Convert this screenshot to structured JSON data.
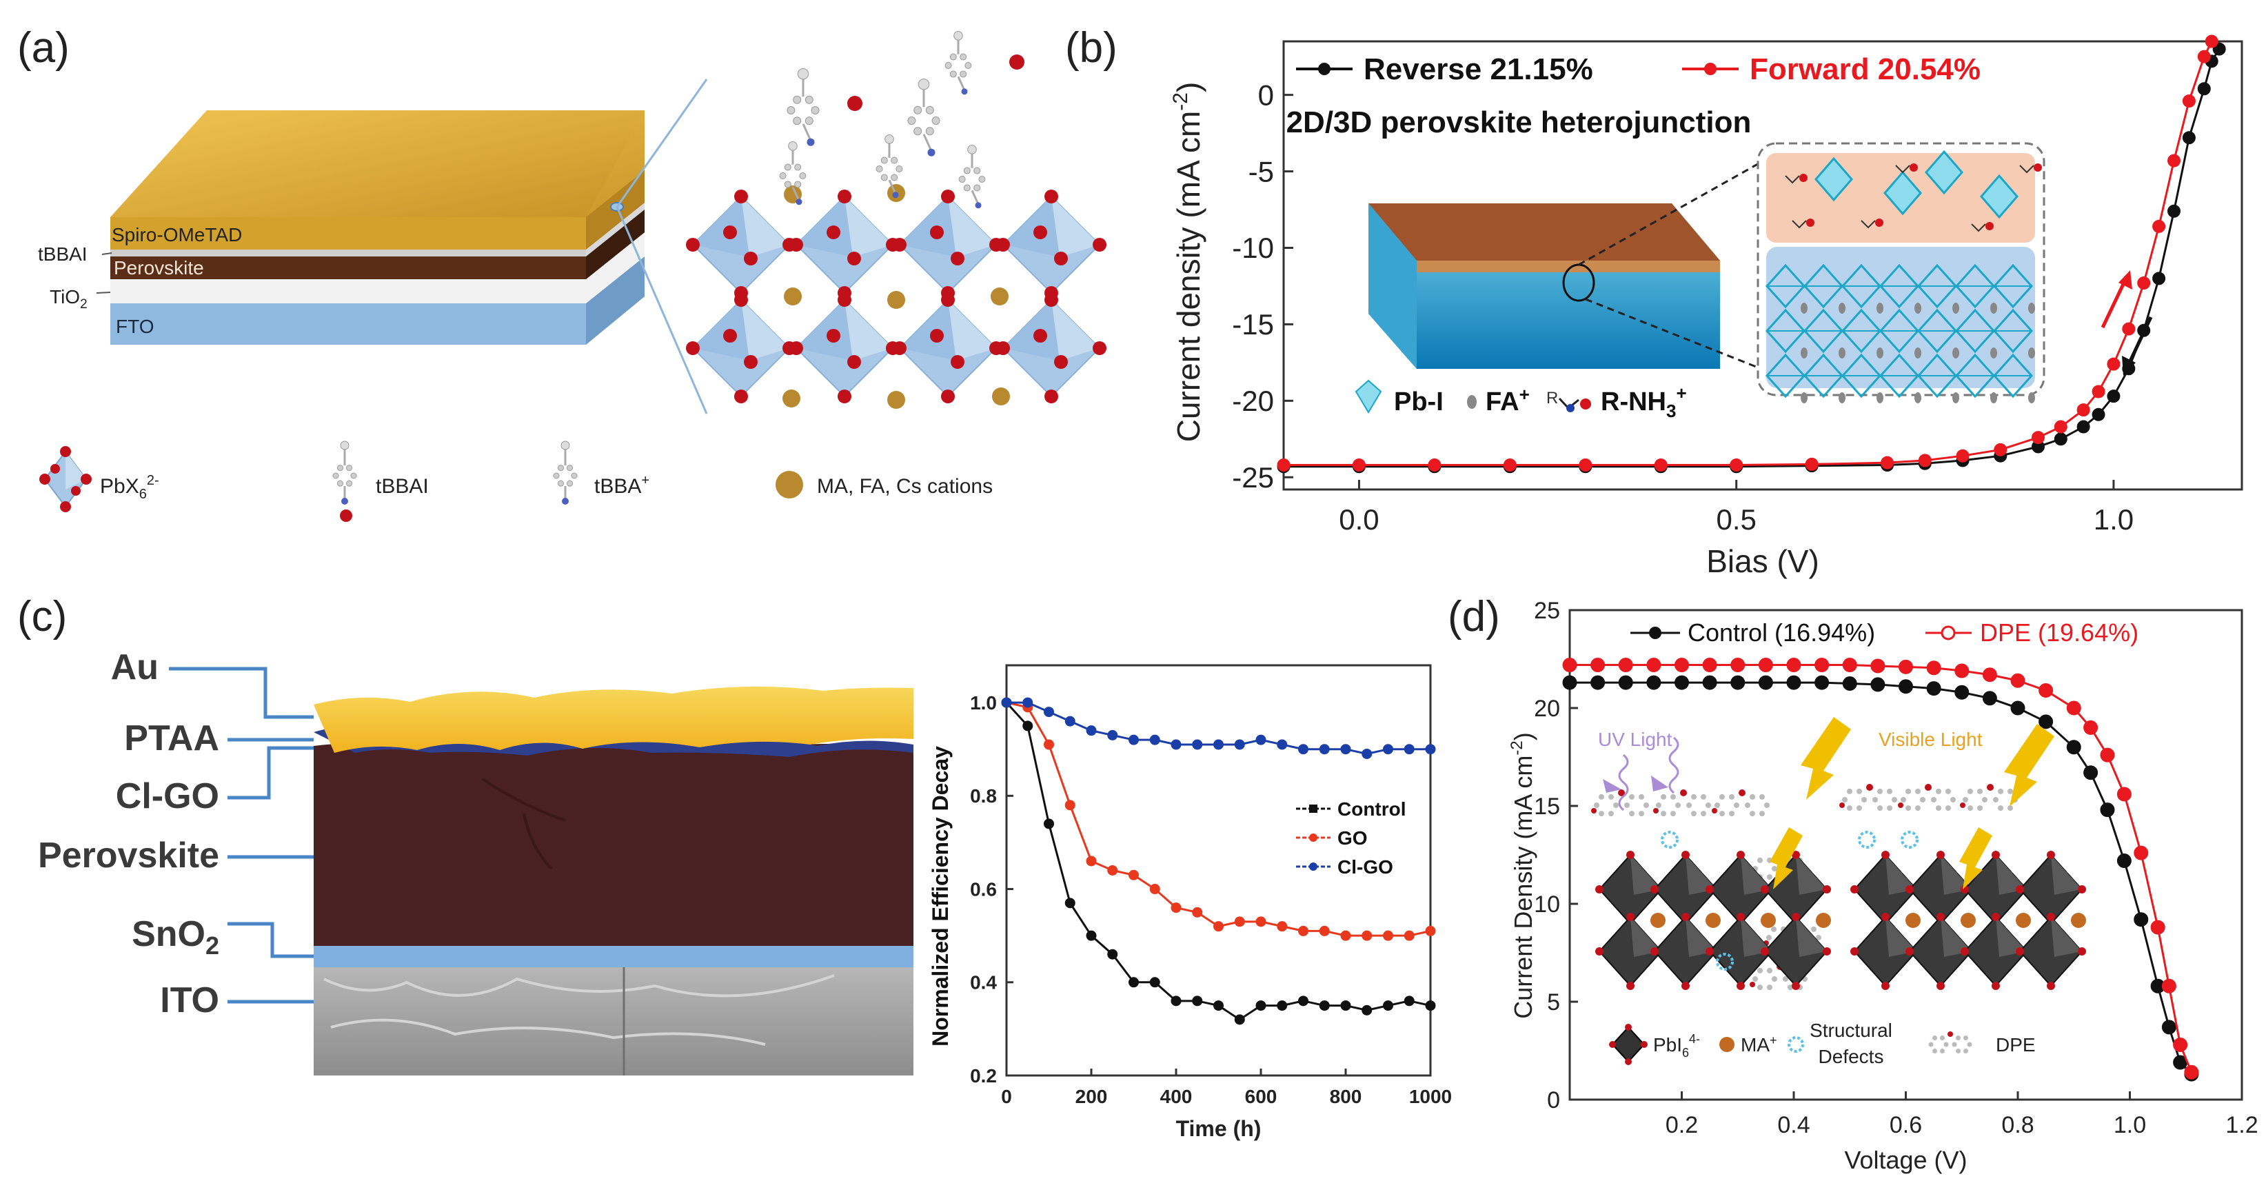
{
  "panel_a": {
    "label": "(a)",
    "layers": [
      "Spiro-OMeTAD",
      "tBBAI",
      "Perovskite",
      "TiO2",
      "FTO"
    ],
    "legend": [
      {
        "symbol": "PbX6 2-",
        "text": "PbX",
        "sub": "6",
        "sup": "2-"
      },
      {
        "symbol": "tBBAI",
        "text": "tBBAI"
      },
      {
        "symbol": "tBBA+",
        "text": "tBBA",
        "sup": "+"
      },
      {
        "symbol": "cations",
        "text": "MA, FA, Cs cations"
      }
    ],
    "colors": {
      "spiro": "#d9aa32",
      "perovskite": "#5a2e16",
      "fto": "#8fb9df",
      "cation": "#b8892e",
      "octahedron": "#a9c8e8",
      "anion": "#c0111b"
    }
  },
  "panel_b": {
    "label": "(b)",
    "inset_title": "2D/3D perovskite heterojunction",
    "inset_legend": [
      "Pb-I",
      "FA+",
      "R-NH3+"
    ],
    "inset_legend_parts": {
      "pbi": "Pb-I",
      "fa": "FA",
      "fa_sup": "+",
      "r": "R",
      "rnh": "R-NH",
      "rnh_sub": "3",
      "rnh_sup": "+"
    }
  },
  "panel_c": {
    "label": "(c)",
    "cross_section_labels": [
      "Au",
      "PTAA",
      "Cl-GO",
      "Perovskite",
      "SnO2",
      "ITO"
    ],
    "sno2": {
      "text": "SnO",
      "sub": "2"
    }
  },
  "panel_d": {
    "label": "(d)",
    "inset_labels": {
      "uv": "UV Light",
      "visible": "Visible Light"
    },
    "inset_legend": {
      "pbi": "PbI",
      "pbi_sub": "6",
      "pbi_sup": "4-",
      "ma": "MA",
      "ma_sup": "+",
      "defects_1": "Structural",
      "defects_2": "Defects",
      "dpe": "DPE"
    }
  },
  "chart_data": [
    {
      "id": "b",
      "type": "line",
      "title": "",
      "xlabel": "Bias (V)",
      "ylabel": "Current density (mA cm-2)",
      "ylabel_parts": {
        "main": "Current density (mA cm",
        "sup": "-2",
        "end": ")"
      },
      "xlim": [
        -0.1,
        1.17
      ],
      "ylim": [
        -25.8,
        3.5
      ],
      "xticks": [
        0.0,
        0.5,
        1.0
      ],
      "xtick_labels": [
        "0.0",
        "0.5",
        "1.0"
      ],
      "yticks": [
        0,
        -5,
        -10,
        -15,
        -20,
        -25
      ],
      "ytick_labels": [
        "0",
        "-5",
        "-10",
        "-15",
        "-20",
        "-25"
      ],
      "legend_position": "top-left",
      "series": [
        {
          "name": "Reverse 21.15%",
          "color": "#111111",
          "x": [
            -0.1,
            0.0,
            0.1,
            0.2,
            0.3,
            0.4,
            0.5,
            0.6,
            0.7,
            0.75,
            0.8,
            0.85,
            0.9,
            0.93,
            0.96,
            0.98,
            1.0,
            1.02,
            1.04,
            1.06,
            1.08,
            1.1,
            1.12,
            1.13,
            1.14
          ],
          "y": [
            -24.3,
            -24.3,
            -24.3,
            -24.3,
            -24.3,
            -24.3,
            -24.3,
            -24.25,
            -24.2,
            -24.1,
            -23.9,
            -23.6,
            -23.0,
            -22.5,
            -21.7,
            -20.9,
            -19.7,
            -17.9,
            -15.4,
            -12.0,
            -7.6,
            -2.8,
            0.4,
            2.2,
            3.0
          ]
        },
        {
          "name": "Forward 20.54%",
          "color": "#e8191f",
          "x": [
            -0.1,
            0.0,
            0.1,
            0.2,
            0.3,
            0.4,
            0.5,
            0.6,
            0.7,
            0.75,
            0.8,
            0.85,
            0.9,
            0.93,
            0.96,
            0.98,
            1.0,
            1.02,
            1.04,
            1.06,
            1.08,
            1.1,
            1.12,
            1.13
          ],
          "y": [
            -24.2,
            -24.2,
            -24.2,
            -24.2,
            -24.2,
            -24.2,
            -24.2,
            -24.15,
            -24.05,
            -23.9,
            -23.6,
            -23.2,
            -22.4,
            -21.7,
            -20.6,
            -19.4,
            -17.6,
            -15.3,
            -12.3,
            -8.6,
            -4.3,
            -0.4,
            2.5,
            3.5
          ]
        }
      ]
    },
    {
      "id": "c",
      "type": "line",
      "title": "",
      "xlabel": "Time (h)",
      "ylabel": "Normalized Efficiency Decay",
      "xlim": [
        0,
        1000
      ],
      "ylim": [
        0.2,
        1.08
      ],
      "xticks": [
        0,
        200,
        400,
        600,
        800,
        1000
      ],
      "xtick_labels": [
        "0",
        "200",
        "400",
        "600",
        "800",
        "1000"
      ],
      "yticks": [
        0.2,
        0.4,
        0.6,
        0.8,
        1.0
      ],
      "ytick_labels": [
        "0.2",
        "0.4",
        "0.6",
        "0.8",
        "1.0"
      ],
      "legend_position": "right",
      "series": [
        {
          "name": "Control",
          "color": "#111111",
          "x": [
            0,
            50,
            100,
            150,
            200,
            250,
            300,
            350,
            400,
            450,
            500,
            550,
            600,
            650,
            700,
            750,
            800,
            850,
            900,
            950,
            1000
          ],
          "y": [
            1.0,
            0.95,
            0.74,
            0.57,
            0.5,
            0.46,
            0.4,
            0.4,
            0.36,
            0.36,
            0.35,
            0.32,
            0.35,
            0.35,
            0.36,
            0.35,
            0.35,
            0.34,
            0.35,
            0.36,
            0.35
          ]
        },
        {
          "name": "GO",
          "color": "#e8391f",
          "x": [
            0,
            50,
            100,
            150,
            200,
            250,
            300,
            350,
            400,
            450,
            500,
            550,
            600,
            650,
            700,
            750,
            800,
            850,
            900,
            950,
            1000
          ],
          "y": [
            1.0,
            0.99,
            0.91,
            0.78,
            0.66,
            0.64,
            0.63,
            0.6,
            0.56,
            0.55,
            0.52,
            0.53,
            0.53,
            0.52,
            0.51,
            0.51,
            0.5,
            0.5,
            0.5,
            0.5,
            0.51
          ]
        },
        {
          "name": "Cl-GO",
          "color": "#1a3fa8",
          "x": [
            0,
            50,
            100,
            150,
            200,
            250,
            300,
            350,
            400,
            450,
            500,
            550,
            600,
            650,
            700,
            750,
            800,
            850,
            900,
            950,
            1000
          ],
          "y": [
            1.0,
            1.0,
            0.98,
            0.96,
            0.94,
            0.93,
            0.92,
            0.92,
            0.91,
            0.91,
            0.91,
            0.91,
            0.92,
            0.91,
            0.9,
            0.9,
            0.9,
            0.89,
            0.9,
            0.9,
            0.9
          ]
        }
      ]
    },
    {
      "id": "d",
      "type": "line",
      "title": "",
      "xlabel": "Voltage (V)",
      "ylabel": "Current Density (mA cm-2)",
      "ylabel_parts": {
        "main": "Current Density (mA cm",
        "sup": "-2",
        "end": ")"
      },
      "xlim": [
        0,
        1.2
      ],
      "ylim": [
        0,
        25
      ],
      "xticks": [
        0.2,
        0.4,
        0.6,
        0.8,
        1.0,
        1.2
      ],
      "xtick_labels": [
        "0.2",
        "0.4",
        "0.6",
        "0.8",
        "1.0",
        "1.2"
      ],
      "yticks": [
        0,
        5,
        10,
        15,
        20,
        25
      ],
      "ytick_labels": [
        "0",
        "5",
        "10",
        "15",
        "20",
        "25"
      ],
      "legend_position": "top",
      "series": [
        {
          "name": "Control (16.94%)",
          "color": "#111111",
          "x": [
            0.0,
            0.05,
            0.1,
            0.15,
            0.2,
            0.25,
            0.3,
            0.35,
            0.4,
            0.45,
            0.5,
            0.55,
            0.6,
            0.65,
            0.7,
            0.75,
            0.8,
            0.85,
            0.9,
            0.93,
            0.96,
            0.99,
            1.02,
            1.05,
            1.07,
            1.09,
            1.11
          ],
          "y": [
            21.3,
            21.3,
            21.3,
            21.3,
            21.3,
            21.3,
            21.3,
            21.3,
            21.3,
            21.3,
            21.25,
            21.2,
            21.1,
            21.0,
            20.8,
            20.5,
            20.0,
            19.3,
            18.0,
            16.7,
            14.8,
            12.2,
            9.2,
            5.8,
            3.7,
            1.9,
            1.3
          ]
        },
        {
          "name": "DPE (19.64%)",
          "color": "#e8191f",
          "x": [
            0.0,
            0.05,
            0.1,
            0.15,
            0.2,
            0.25,
            0.3,
            0.35,
            0.4,
            0.45,
            0.5,
            0.55,
            0.6,
            0.65,
            0.7,
            0.75,
            0.8,
            0.85,
            0.9,
            0.93,
            0.96,
            0.99,
            1.02,
            1.05,
            1.07,
            1.09,
            1.11
          ],
          "y": [
            22.2,
            22.2,
            22.2,
            22.2,
            22.2,
            22.2,
            22.2,
            22.2,
            22.2,
            22.2,
            22.2,
            22.15,
            22.1,
            22.05,
            21.9,
            21.7,
            21.4,
            20.9,
            20.0,
            19.0,
            17.6,
            15.6,
            12.6,
            8.8,
            5.8,
            2.8,
            1.4
          ]
        }
      ]
    }
  ]
}
